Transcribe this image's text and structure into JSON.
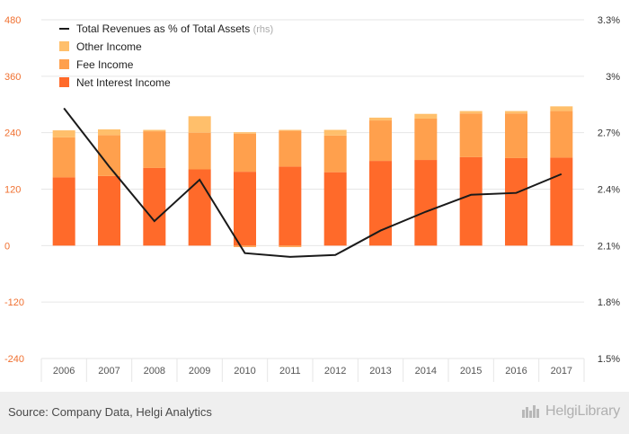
{
  "chart_data": {
    "type": "bar",
    "categories": [
      "2006",
      "2007",
      "2008",
      "2009",
      "2010",
      "2011",
      "2012",
      "2013",
      "2014",
      "2015",
      "2016",
      "2017"
    ],
    "series": [
      {
        "name": "Net Interest Income",
        "kind": "bar",
        "color": "#ff6a2a",
        "values": [
          145,
          148,
          165,
          162,
          157,
          168,
          156,
          180,
          182,
          188,
          186,
          187
        ]
      },
      {
        "name": "Fee Income",
        "kind": "bar",
        "color": "#ffa04d",
        "values": [
          85,
          87,
          78,
          78,
          81,
          76,
          78,
          86,
          88,
          93,
          95,
          99
        ]
      },
      {
        "name": "Other Income",
        "kind": "bar",
        "color": "#ffbf6b",
        "values": [
          15,
          12,
          3,
          35,
          3,
          2,
          12,
          6,
          10,
          5,
          5,
          10
        ]
      },
      {
        "name": "Total Revenues as % of Total Assets",
        "suffix": "(rhs)",
        "kind": "line",
        "axis": "right",
        "color": "#1a1a1a",
        "values": [
          2.83,
          2.52,
          2.23,
          2.45,
          2.06,
          2.04,
          2.05,
          2.18,
          2.28,
          2.37,
          2.38,
          2.48
        ]
      }
    ],
    "negative_values": {
      "2010": {
        "series": "Fee Income",
        "value": -3
      },
      "2011": {
        "series": "Fee Income",
        "value": -3
      }
    },
    "y_left": {
      "min": -240,
      "max": 480,
      "ticks": [
        -240,
        -120,
        0,
        120,
        240,
        360,
        480
      ],
      "tick_labels": [
        "-240",
        "-120",
        "0",
        "120",
        "240",
        "360",
        "480"
      ],
      "color": "#f07030"
    },
    "y_right": {
      "min": 1.5,
      "max": 3.3,
      "ticks": [
        1.5,
        1.8,
        2.1,
        2.4,
        2.7,
        3.0,
        3.3
      ],
      "tick_labels": [
        "1.5%",
        "1.8%",
        "2.1%",
        "2.4%",
        "2.7%",
        "3%",
        "3.3%"
      ]
    },
    "legend_position": "top-left",
    "grid": true
  },
  "footer": {
    "source": "Source: Company Data, Helgi Analytics",
    "brand": "HelgiLibrary"
  }
}
